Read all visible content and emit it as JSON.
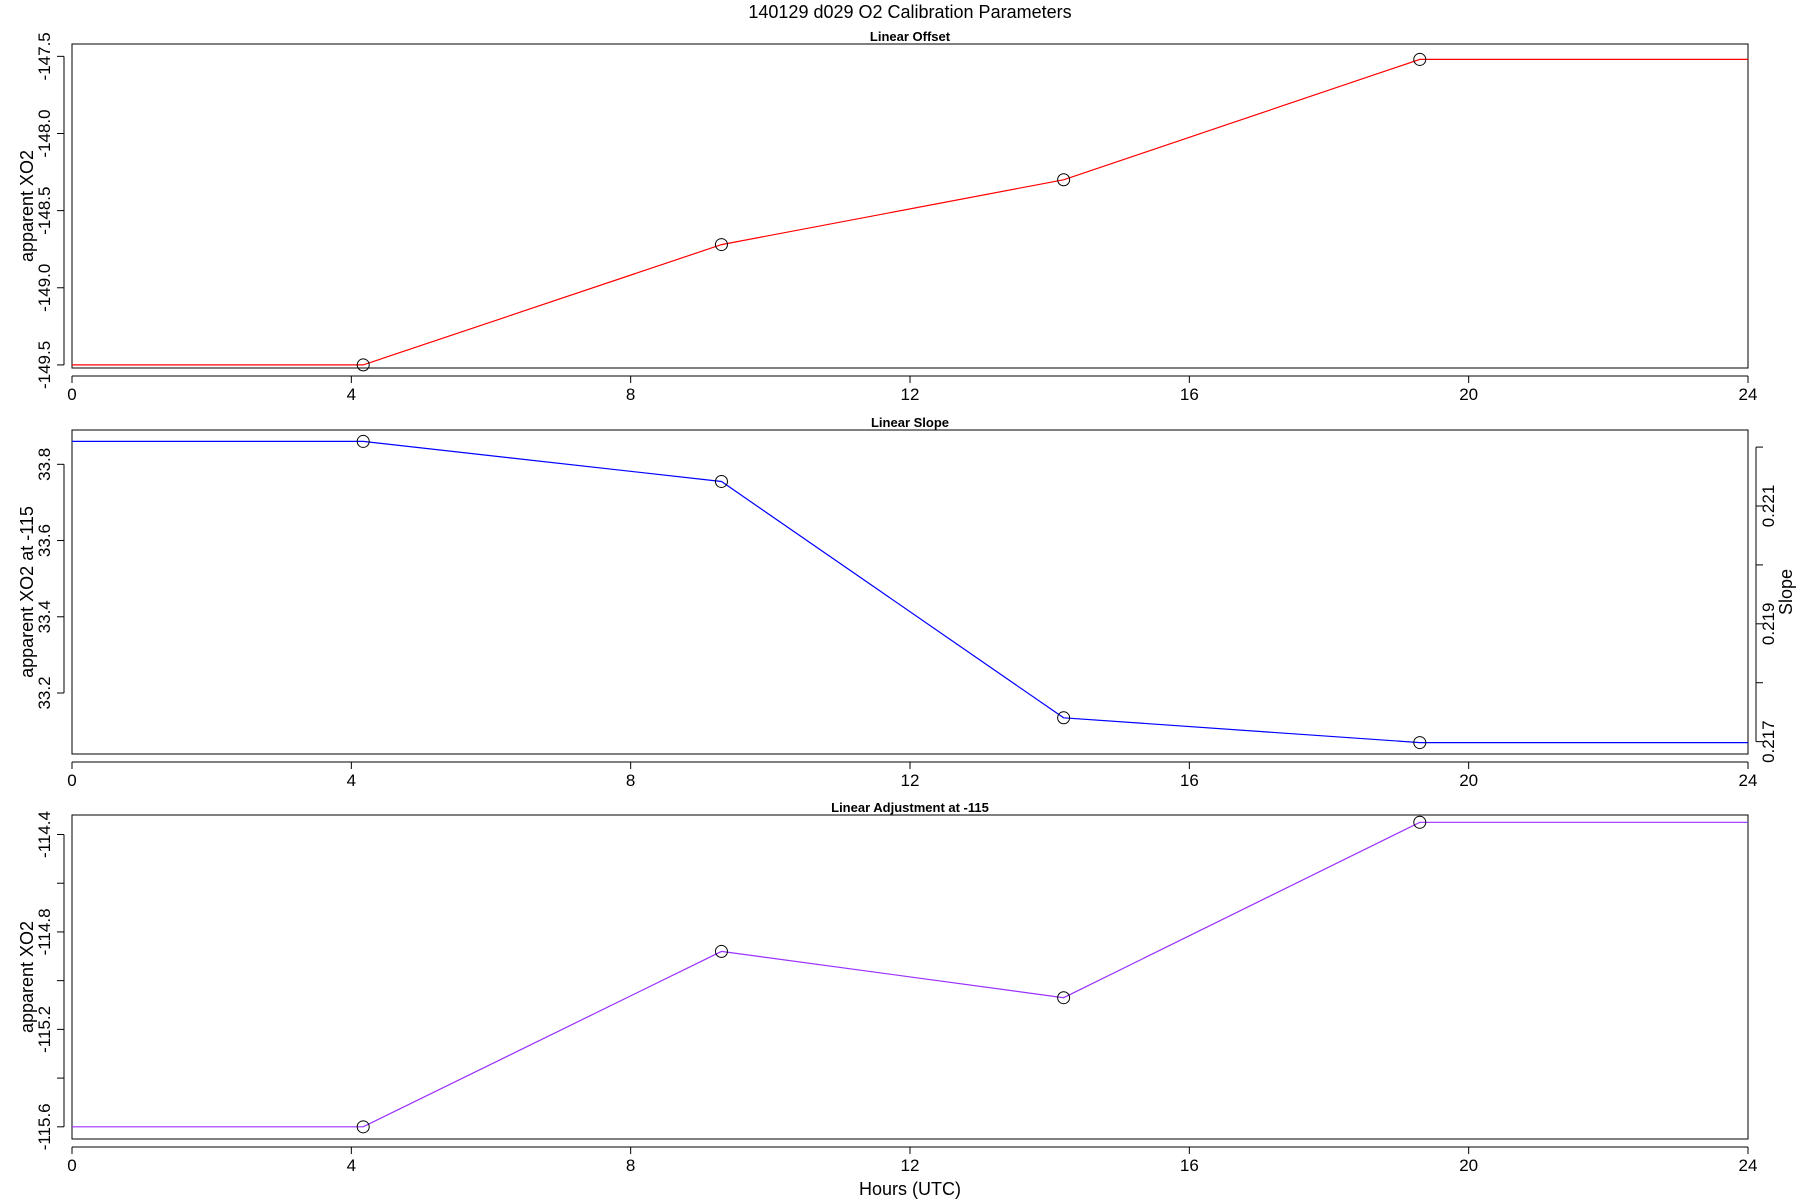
{
  "figure": {
    "title": "140129   d029   O2 Calibration Parameters",
    "xlabel": "Hours (UTC)"
  },
  "chart_data": [
    {
      "type": "line",
      "title": "Linear Offset",
      "xlabel": "",
      "ylabel": "apparent XO2",
      "color": "#ff0000",
      "xlim": [
        0,
        24
      ],
      "ylim": [
        -149.52,
        -147.42
      ],
      "x_ticks": [
        0,
        4,
        8,
        12,
        16,
        20,
        24
      ],
      "y_ticks": [
        -149.5,
        -149.0,
        -148.5,
        -148.0,
        -147.5
      ],
      "y_tick_labels": [
        "-149.5",
        "-149.0",
        "-148.5",
        "-148.0",
        "-147.5"
      ],
      "x": [
        0,
        4.17,
        9.3,
        14.2,
        19.3,
        24
      ],
      "y": [
        -149.5,
        -149.5,
        -148.72,
        -148.3,
        -147.52,
        -147.52
      ],
      "markers_x": [
        4.17,
        9.3,
        14.2,
        19.3
      ],
      "markers_y": [
        -149.5,
        -148.72,
        -148.3,
        -147.52
      ]
    },
    {
      "type": "line",
      "title": "Linear Slope",
      "xlabel": "",
      "ylabel": "apparent XO2 at -115",
      "y2label": "Slope",
      "color": "#0000ff",
      "xlim": [
        0,
        24
      ],
      "ylim": [
        33.04,
        33.89
      ],
      "y2lim": [
        0.21679,
        0.22229
      ],
      "x_ticks": [
        0,
        4,
        8,
        12,
        16,
        20,
        24
      ],
      "y_ticks": [
        33.2,
        33.4,
        33.6,
        33.8
      ],
      "y_tick_labels": [
        "33.2",
        "33.4",
        "33.6",
        "33.8"
      ],
      "y2_ticks": [
        0.217,
        0.218,
        0.219,
        0.22,
        0.221,
        0.222
      ],
      "y2_tick_labels": [
        "0.217",
        "",
        "0.219",
        "",
        "0.221",
        ""
      ],
      "x": [
        0,
        4.17,
        9.3,
        14.2,
        19.3,
        24
      ],
      "y": [
        33.86,
        33.86,
        33.755,
        33.135,
        33.07,
        33.07
      ],
      "markers_x": [
        4.17,
        9.3,
        14.2,
        19.3
      ],
      "markers_y": [
        33.86,
        33.755,
        33.135,
        33.07
      ]
    },
    {
      "type": "line",
      "title": "Linear Adjustment at -115",
      "xlabel": "Hours (UTC)",
      "ylabel": "apparent XO2",
      "color": "#9b30ff",
      "xlim": [
        0,
        24
      ],
      "ylim": [
        -115.65,
        -114.32
      ],
      "x_ticks": [
        0,
        4,
        8,
        12,
        16,
        20,
        24
      ],
      "y_ticks": [
        -115.6,
        -115.4,
        -115.2,
        -115.0,
        -114.8,
        -114.6,
        -114.4
      ],
      "y_tick_labels": [
        "-115.6",
        "",
        "-115.2",
        "",
        "-114.8",
        "",
        "-114.4"
      ],
      "x": [
        0,
        4.17,
        9.3,
        14.2,
        19.3,
        24
      ],
      "y": [
        -115.6,
        -115.6,
        -114.88,
        -115.07,
        -114.35,
        -114.35
      ],
      "markers_x": [
        4.17,
        9.3,
        14.2,
        19.3
      ],
      "markers_y": [
        -115.6,
        -114.88,
        -115.07,
        -114.35
      ]
    }
  ]
}
